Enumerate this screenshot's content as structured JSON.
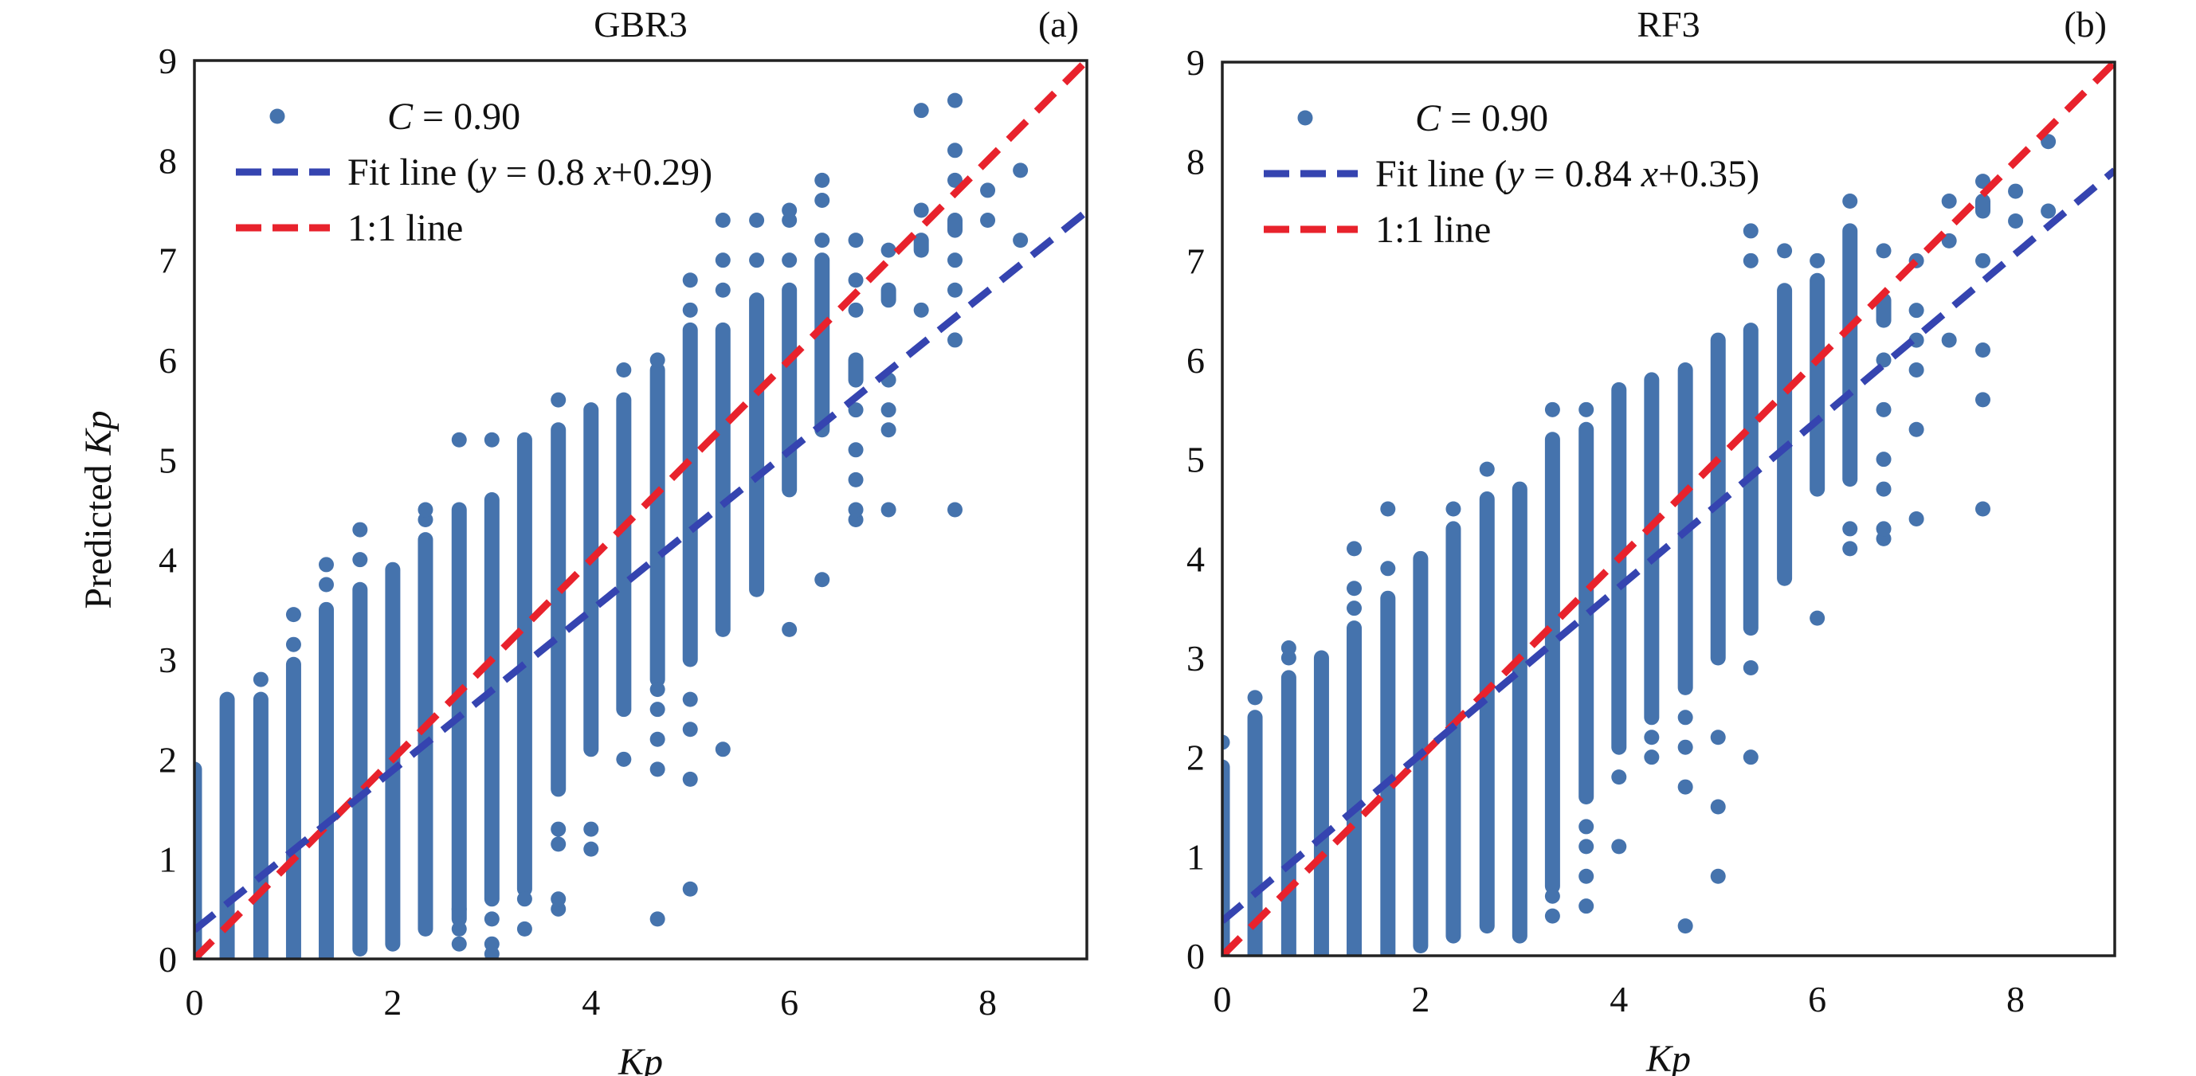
{
  "chart_data": [
    {
      "type": "scatter",
      "panel_label": "(a)",
      "title": "GBR3",
      "xlabel": "Kp",
      "ylabel": "Predicted Kp",
      "xlim": [
        0,
        9
      ],
      "ylim": [
        0,
        9
      ],
      "xticks": [
        "0",
        "2",
        "4",
        "6",
        "8"
      ],
      "xtick_values": [
        0,
        2,
        4,
        6,
        8
      ],
      "yticks": [
        "0",
        "1",
        "2",
        "3",
        "4",
        "5",
        "6",
        "7",
        "8",
        "9"
      ],
      "ytick_values": [
        0,
        1,
        2,
        3,
        4,
        5,
        6,
        7,
        8,
        9
      ],
      "grid": false,
      "legend_position": "top-left",
      "legend": [
        {
          "kind": "marker",
          "label_italic": "C",
          "label_rest": " = 0.90"
        },
        {
          "kind": "fit",
          "label_prefix": "Fit line (",
          "label_y": "y",
          "label_mid": " = 0.8 ",
          "label_x": "x",
          "label_suffix": "+0.29)"
        },
        {
          "kind": "identity",
          "label": "1:1 line"
        }
      ],
      "correlation_C": 0.9,
      "fit_line": {
        "slope": 0.8,
        "intercept": 0.29
      },
      "identity_line": {
        "slope": 1,
        "intercept": 0
      },
      "columns": [
        {
          "x": 0.0,
          "range": [
            0,
            1.9
          ],
          "points": []
        },
        {
          "x": 0.33,
          "range": [
            0,
            2.6
          ],
          "points": []
        },
        {
          "x": 0.67,
          "range": [
            0,
            2.6
          ],
          "points": [
            2.8
          ]
        },
        {
          "x": 1.0,
          "range": [
            0,
            2.95
          ],
          "points": [
            3.15,
            3.45
          ]
        },
        {
          "x": 1.33,
          "range": [
            0,
            3.5
          ],
          "points": [
            3.75,
            3.95
          ]
        },
        {
          "x": 1.67,
          "range": [
            0.1,
            3.7
          ],
          "points": [
            4.0,
            4.3
          ]
        },
        {
          "x": 2.0,
          "range": [
            0.15,
            3.9
          ],
          "points": []
        },
        {
          "x": 2.33,
          "range": [
            0.3,
            4.2
          ],
          "points": [
            4.4,
            4.5
          ]
        },
        {
          "x": 2.67,
          "range": [
            0.4,
            4.5
          ],
          "points": [
            0.15,
            0.3,
            0.5,
            5.2
          ]
        },
        {
          "x": 3.0,
          "range": [
            0.6,
            4.6
          ],
          "points": [
            0.05,
            0.15,
            0.4,
            5.2
          ]
        },
        {
          "x": 3.33,
          "range": [
            0.7,
            5.2
          ],
          "points": [
            0.3,
            0.6
          ]
        },
        {
          "x": 3.67,
          "range": [
            1.7,
            5.3
          ],
          "points": [
            0.5,
            0.6,
            1.15,
            1.3,
            5.6
          ]
        },
        {
          "x": 4.0,
          "range": [
            2.1,
            5.5
          ],
          "points": [
            1.1,
            1.3
          ]
        },
        {
          "x": 4.33,
          "range": [
            2.5,
            5.6
          ],
          "points": [
            2.0,
            5.9
          ]
        },
        {
          "x": 4.67,
          "range": [
            2.8,
            5.9
          ],
          "points": [
            0.4,
            1.9,
            2.2,
            2.5,
            2.7,
            6.0
          ]
        },
        {
          "x": 5.0,
          "range": [
            3.0,
            6.3
          ],
          "points": [
            0.7,
            1.8,
            2.3,
            2.6,
            6.5,
            6.8
          ]
        },
        {
          "x": 5.33,
          "range": [
            3.3,
            6.3
          ],
          "points": [
            2.1,
            6.7,
            7.0,
            7.4
          ]
        },
        {
          "x": 5.67,
          "range": [
            3.7,
            6.6
          ],
          "points": [
            7.0,
            7.4
          ]
        },
        {
          "x": 6.0,
          "range": [
            4.7,
            6.7
          ],
          "points": [
            3.3,
            7.0,
            7.4,
            7.5
          ]
        },
        {
          "x": 6.33,
          "range": [
            5.3,
            7.0
          ],
          "points": [
            3.8,
            7.2,
            7.6,
            7.8
          ]
        },
        {
          "x": 6.67,
          "range": [
            5.8,
            6.0
          ],
          "points": [
            4.4,
            4.5,
            4.8,
            5.1,
            5.5,
            6.5,
            6.8,
            7.2
          ]
        },
        {
          "x": 7.0,
          "range": [
            6.6,
            6.7
          ],
          "points": [
            4.5,
            5.3,
            5.5,
            5.8,
            7.1
          ]
        },
        {
          "x": 7.33,
          "range": [
            7.1,
            7.2
          ],
          "points": [
            6.5,
            7.5,
            8.5
          ]
        },
        {
          "x": 7.67,
          "range": [
            7.3,
            7.4
          ],
          "points": [
            4.5,
            6.2,
            6.7,
            7.0,
            7.8,
            8.1,
            8.6
          ]
        },
        {
          "x": 8.0,
          "range": [
            7.4,
            7.4
          ],
          "points": [
            7.7
          ]
        },
        {
          "x": 8.33,
          "range": [
            7.2,
            7.2
          ],
          "points": [
            7.9
          ]
        }
      ]
    },
    {
      "type": "scatter",
      "panel_label": "(b)",
      "title": "RF3",
      "xlabel": "Kp",
      "ylabel": "",
      "xlim": [
        0,
        9
      ],
      "ylim": [
        0,
        9
      ],
      "xticks": [
        "0",
        "2",
        "4",
        "6",
        "8"
      ],
      "xtick_values": [
        0,
        2,
        4,
        6,
        8
      ],
      "yticks": [
        "0",
        "1",
        "2",
        "3",
        "4",
        "5",
        "6",
        "7",
        "8",
        "9"
      ],
      "ytick_values": [
        0,
        1,
        2,
        3,
        4,
        5,
        6,
        7,
        8,
        9
      ],
      "grid": false,
      "legend_position": "top-left",
      "legend": [
        {
          "kind": "marker",
          "label_italic": "C",
          "label_rest": " = 0.90"
        },
        {
          "kind": "fit",
          "label_prefix": "Fit line (",
          "label_y": "y",
          "label_mid": " = 0.84 ",
          "label_x": "x",
          "label_suffix": "+0.35)"
        },
        {
          "kind": "identity",
          "label": "1:1 line"
        }
      ],
      "correlation_C": 0.9,
      "fit_line": {
        "slope": 0.84,
        "intercept": 0.35
      },
      "identity_line": {
        "slope": 1,
        "intercept": 0
      },
      "columns": [
        {
          "x": 0.0,
          "range": [
            0,
            1.9
          ],
          "points": [
            2.15
          ]
        },
        {
          "x": 0.33,
          "range": [
            0,
            2.4
          ],
          "points": [
            2.6
          ]
        },
        {
          "x": 0.67,
          "range": [
            0,
            2.8
          ],
          "points": [
            3.0,
            3.1
          ]
        },
        {
          "x": 1.0,
          "range": [
            0,
            3.0
          ],
          "points": []
        },
        {
          "x": 1.33,
          "range": [
            0,
            3.3
          ],
          "points": [
            3.5,
            3.7,
            4.1
          ]
        },
        {
          "x": 1.67,
          "range": [
            0,
            3.6
          ],
          "points": [
            3.9,
            4.5
          ]
        },
        {
          "x": 2.0,
          "range": [
            0.1,
            4.0
          ],
          "points": []
        },
        {
          "x": 2.33,
          "range": [
            0.2,
            4.3
          ],
          "points": [
            4.5
          ]
        },
        {
          "x": 2.67,
          "range": [
            0.3,
            4.6
          ],
          "points": [
            4.9
          ]
        },
        {
          "x": 3.0,
          "range": [
            0.2,
            4.7
          ],
          "points": []
        },
        {
          "x": 3.33,
          "range": [
            0.7,
            5.2
          ],
          "points": [
            0.4,
            0.6,
            5.5
          ]
        },
        {
          "x": 3.67,
          "range": [
            1.6,
            5.3
          ],
          "points": [
            0.5,
            0.8,
            1.1,
            1.3,
            5.5
          ]
        },
        {
          "x": 4.0,
          "range": [
            2.1,
            5.7
          ],
          "points": [
            1.1,
            1.8
          ]
        },
        {
          "x": 4.33,
          "range": [
            2.4,
            5.8
          ],
          "points": [
            2.0,
            2.2
          ]
        },
        {
          "x": 4.67,
          "range": [
            2.7,
            5.9
          ],
          "points": [
            0.3,
            1.7,
            2.1,
            2.4
          ]
        },
        {
          "x": 5.0,
          "range": [
            3.0,
            6.2
          ],
          "points": [
            0.8,
            1.5,
            2.2
          ]
        },
        {
          "x": 5.33,
          "range": [
            3.3,
            6.3
          ],
          "points": [
            2.0,
            2.9,
            7.0,
            7.3
          ]
        },
        {
          "x": 5.67,
          "range": [
            3.8,
            6.7
          ],
          "points": [
            7.1
          ]
        },
        {
          "x": 6.0,
          "range": [
            4.7,
            6.8
          ],
          "points": [
            3.4,
            7.0
          ]
        },
        {
          "x": 6.33,
          "range": [
            4.8,
            7.3
          ],
          "points": [
            4.1,
            4.3,
            7.6
          ]
        },
        {
          "x": 6.67,
          "range": [
            6.4,
            6.6
          ],
          "points": [
            4.2,
            4.3,
            4.7,
            5.0,
            5.5,
            6.0,
            7.1
          ]
        },
        {
          "x": 7.0,
          "range": [
            6.2,
            6.2
          ],
          "points": [
            4.4,
            5.3,
            5.9,
            6.5,
            7.0
          ]
        },
        {
          "x": 7.33,
          "range": [
            6.2,
            6.2
          ],
          "points": [
            7.2,
            7.6
          ]
        },
        {
          "x": 7.67,
          "range": [
            7.5,
            7.6
          ],
          "points": [
            4.5,
            5.6,
            6.1,
            7.0,
            7.8
          ]
        },
        {
          "x": 8.0,
          "range": [
            7.4,
            7.4
          ],
          "points": [
            7.7
          ]
        },
        {
          "x": 8.33,
          "range": [
            7.5,
            7.5
          ],
          "points": [
            8.2
          ]
        }
      ]
    }
  ],
  "colors": {
    "marker": "#4573ad",
    "fit_line": "#3544b0",
    "identity_line": "#e8222c",
    "axes": "#222222",
    "text": "#111111"
  }
}
